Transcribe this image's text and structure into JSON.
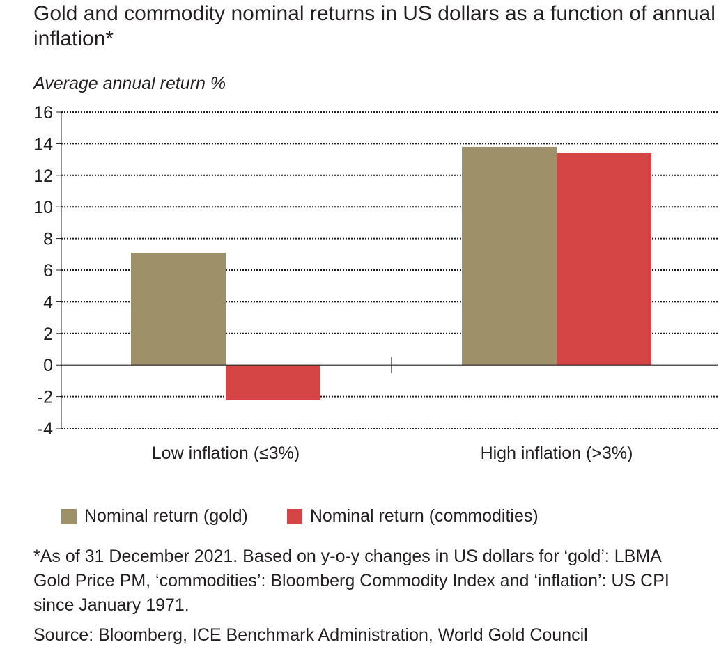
{
  "chart_data": {
    "type": "bar",
    "title": "Gold and commodity nominal returns in US dollars as a function of annual inflation*",
    "ylabel": "Average annual return %",
    "xlabel": "",
    "categories": [
      "Low inflation (≤3%)",
      "High inflation (>3%)"
    ],
    "series": [
      {
        "name": "Nominal return (gold)",
        "values": [
          7.1,
          13.8
        ],
        "color": "#9e9068"
      },
      {
        "name": "Nominal return (commodities)",
        "values": [
          -2.2,
          13.4
        ],
        "color": "#d64545"
      }
    ],
    "ylim": [
      -4,
      16
    ],
    "yticks": [
      16,
      14,
      12,
      10,
      8,
      6,
      4,
      2,
      0,
      -2,
      -4
    ],
    "grid": true,
    "legend_position": "bottom"
  },
  "footnote": "*As of 31 December 2021. Based on y-o-y changes in US dollars for ‘gold’: LBMA Gold Price PM, ‘commodities’: Bloomberg Commodity Index and ‘inflation’: US CPI since January 1971.",
  "source": "Source: Bloomberg, ICE Benchmark Administration, World Gold Council"
}
